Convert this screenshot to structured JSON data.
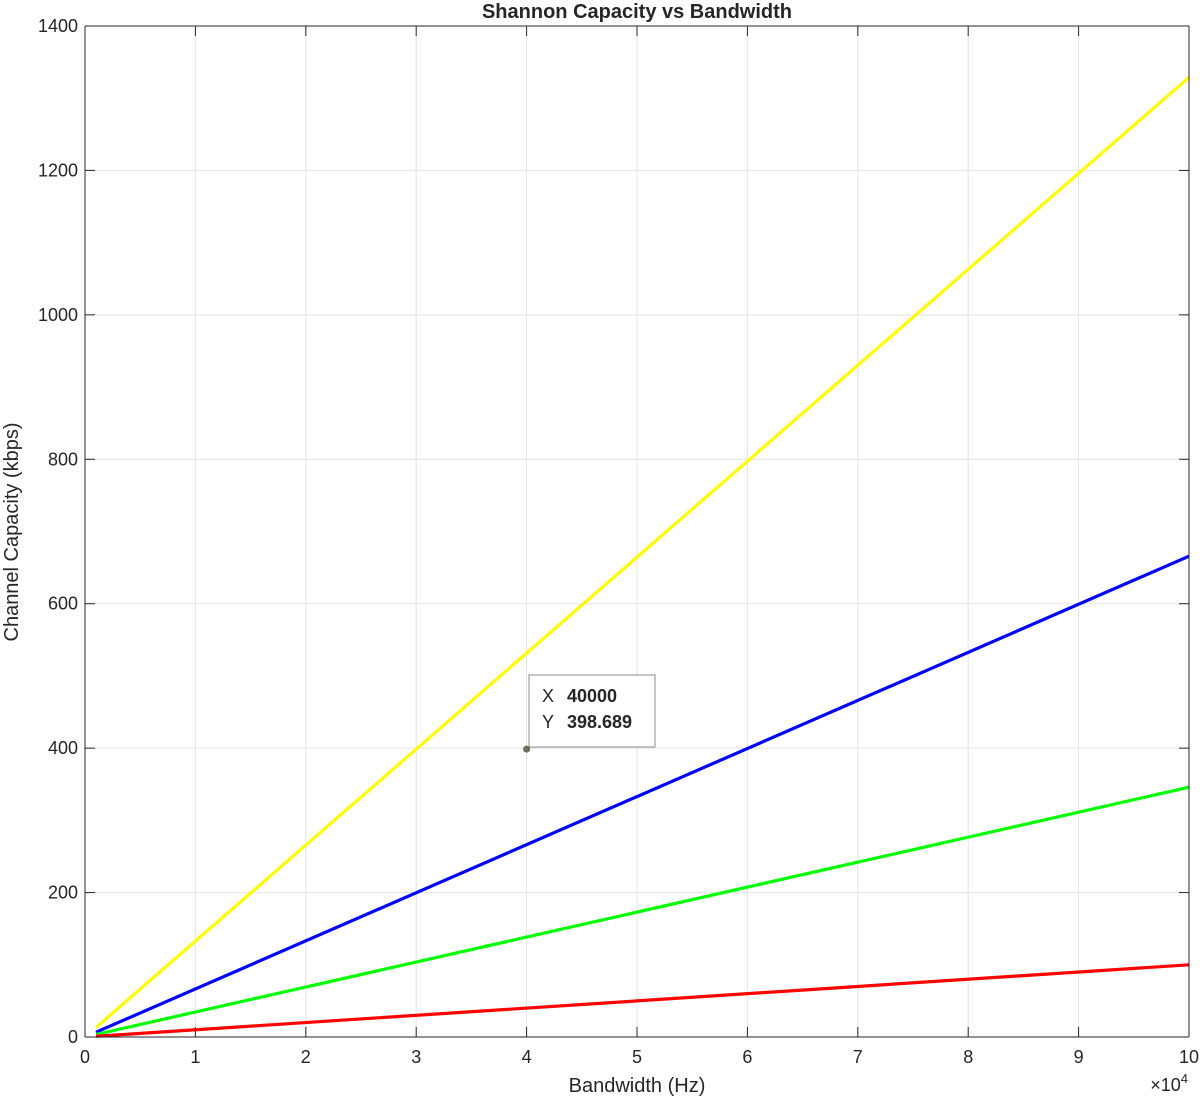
{
  "chart_data": {
    "type": "line",
    "title": "Shannon Capacity vs Bandwidth",
    "xlabel": "Bandwidth (Hz)",
    "ylabel": "Channel Capacity (kbps)",
    "x_exponent_label": "×10",
    "x_exponent_power": "4",
    "xlim": [
      0,
      100000
    ],
    "ylim": [
      0,
      1400
    ],
    "x_ticks": [
      0,
      10000,
      20000,
      30000,
      40000,
      50000,
      60000,
      70000,
      80000,
      90000,
      100000
    ],
    "x_tick_labels": [
      "0",
      "1",
      "2",
      "3",
      "4",
      "5",
      "6",
      "7",
      "8",
      "9",
      "10"
    ],
    "y_ticks": [
      0,
      200,
      400,
      600,
      800,
      1000,
      1200,
      1400
    ],
    "y_tick_labels": [
      "0",
      "200",
      "400",
      "600",
      "800",
      "1000",
      "1200",
      "1400"
    ],
    "grid": true,
    "x": [
      1000,
      100000
    ],
    "series": [
      {
        "color": "#ffff00",
        "values": [
          13.29,
          1328.9
        ]
      },
      {
        "color": "#0000ff",
        "values": [
          6.66,
          665.8
        ]
      },
      {
        "color": "#00ff00",
        "values": [
          3.46,
          345.9
        ]
      },
      {
        "color": "#ff0000",
        "values": [
          1.0,
          100.0
        ]
      }
    ],
    "datatip": {
      "x": 40000,
      "y": 398.689,
      "x_key": "X",
      "y_key": "Y",
      "x_text": "40000",
      "y_text": "398.689",
      "marker_color": "#6e6e5c"
    }
  }
}
